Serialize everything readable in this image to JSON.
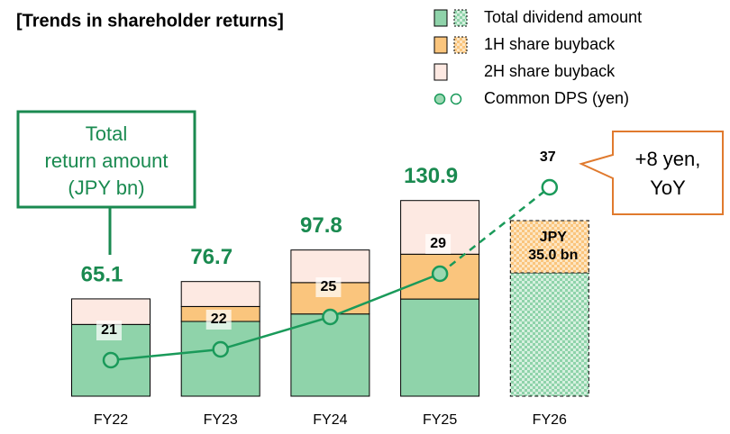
{
  "chart_data": {
    "type": "bar",
    "title": "[Trends in shareholder returns]",
    "categories": [
      "FY22",
      "FY23",
      "FY24",
      "FY25",
      "FY26"
    ],
    "series": [
      {
        "name": "Total dividend amount",
        "color": "#8fd3aa",
        "values": [
          48,
          50,
          55,
          65,
          82.5
        ]
      },
      {
        "name": "1H share buyback",
        "color": "#fac57d",
        "values": [
          null,
          10,
          21,
          30,
          35.0
        ],
        "value_labels": [
          null,
          null,
          null,
          null,
          "JPY 35.0 bn"
        ]
      },
      {
        "name": "2H share buyback",
        "color": "#fde9e2",
        "values": [
          17.1,
          16.7,
          21.8,
          35.9,
          null
        ]
      },
      {
        "name": "Common DPS (yen)",
        "type": "line",
        "color": "#1a9a5a",
        "values": [
          21,
          22,
          25,
          29,
          37
        ]
      }
    ],
    "totals": [
      65.1,
      76.7,
      97.8,
      130.9,
      null
    ],
    "annotations": [
      [
        "Total",
        "return amount",
        "(JPY bn)"
      ],
      [
        "+8 yen,",
        "YoY"
      ]
    ]
  }
}
